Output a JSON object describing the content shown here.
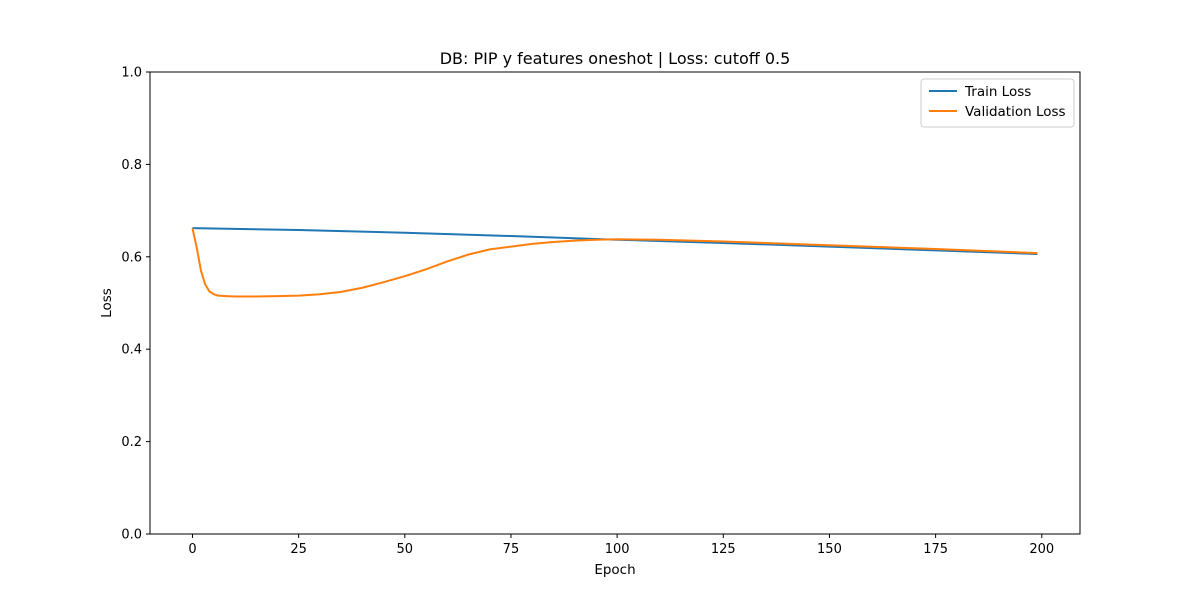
{
  "chart_data": {
    "type": "line",
    "title": "DB: PIP y features oneshot | Loss: cutoff 0.5",
    "xlabel": "Epoch",
    "ylabel": "Loss",
    "xlim": [
      -10,
      209
    ],
    "ylim": [
      0.0,
      1.0
    ],
    "xticks": [
      0,
      25,
      50,
      75,
      100,
      125,
      150,
      175,
      200
    ],
    "yticks": [
      0.0,
      0.2,
      0.4,
      0.6,
      0.8,
      1.0
    ],
    "xtick_labels": [
      "0",
      "25",
      "50",
      "75",
      "100",
      "125",
      "150",
      "175",
      "200"
    ],
    "ytick_labels": [
      "0.0",
      "0.2",
      "0.4",
      "0.6",
      "0.8",
      "1.0"
    ],
    "grid": false,
    "legend_position": "top-right",
    "series": [
      {
        "name": "Train Loss",
        "color": "#1f77b4",
        "x": [
          0,
          25,
          50,
          75,
          100,
          125,
          150,
          175,
          199
        ],
        "y": [
          0.662,
          0.658,
          0.652,
          0.645,
          0.637,
          0.63,
          0.622,
          0.614,
          0.606
        ]
      },
      {
        "name": "Validation Loss",
        "color": "#ff7f0e",
        "x": [
          0,
          1,
          2,
          3,
          4,
          5,
          6,
          8,
          10,
          15,
          20,
          25,
          30,
          35,
          40,
          45,
          50,
          55,
          60,
          65,
          70,
          75,
          80,
          85,
          90,
          95,
          100,
          110,
          125,
          150,
          175,
          199
        ],
        "y": [
          0.662,
          0.62,
          0.57,
          0.54,
          0.525,
          0.519,
          0.516,
          0.515,
          0.514,
          0.514,
          0.515,
          0.516,
          0.519,
          0.524,
          0.533,
          0.545,
          0.558,
          0.573,
          0.59,
          0.605,
          0.616,
          0.622,
          0.628,
          0.632,
          0.635,
          0.637,
          0.638,
          0.637,
          0.633,
          0.625,
          0.617,
          0.608
        ]
      }
    ]
  }
}
